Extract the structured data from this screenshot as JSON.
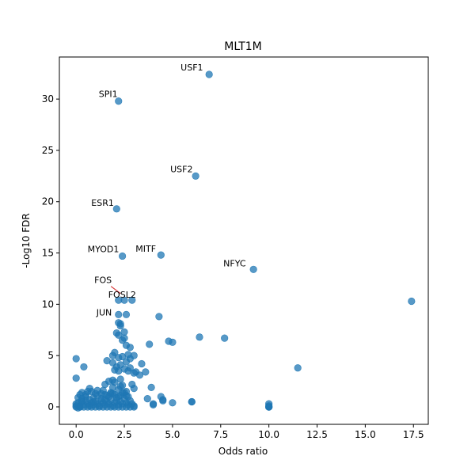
{
  "chart_data": {
    "type": "scatter",
    "title": "MLT1M",
    "xlabel": "Odds ratio",
    "ylabel": "-Log10 FDR",
    "xlim": [
      -0.87,
      18.27
    ],
    "ylim": [
      -1.7,
      34.1
    ],
    "xticks": [
      "0.0",
      "2.5",
      "5.0",
      "7.5",
      "10.0",
      "12.5",
      "15.0",
      "17.5"
    ],
    "yticks": [
      "0",
      "5",
      "10",
      "15",
      "20",
      "25",
      "30"
    ],
    "grid": false,
    "point_color": "#1f77b4",
    "annotations": [
      {
        "label": "USF1",
        "x": 6.9,
        "y": 32.4
      },
      {
        "label": "SPI1",
        "x": 2.2,
        "y": 29.8
      },
      {
        "label": "USF2",
        "x": 6.2,
        "y": 22.5
      },
      {
        "label": "ESR1",
        "x": 2.1,
        "y": 19.3
      },
      {
        "label": "MYOD1",
        "x": 2.4,
        "y": 14.7
      },
      {
        "label": "MITF",
        "x": 4.4,
        "y": 14.8
      },
      {
        "label": "NFYC",
        "x": 9.2,
        "y": 13.4
      },
      {
        "label": "FOS",
        "x": 2.3,
        "y": 10.9
      },
      {
        "label": "FOSL2",
        "x": 2.2,
        "y": 10.5
      },
      {
        "label": "JUN",
        "x": 2.2,
        "y": 10.3
      }
    ],
    "x": [
      6.9,
      2.2,
      6.2,
      2.1,
      2.4,
      4.4,
      9.2,
      2.2,
      2.5,
      2.9,
      17.4,
      2.2,
      2.3,
      2.6,
      4.3,
      2.2,
      2.3,
      2.5,
      2.1,
      2.2,
      2.4,
      6.4,
      7.7,
      4.8,
      5.0,
      3.8,
      2.6,
      2.8,
      2.5,
      1.9,
      2.0,
      2.2,
      2.4,
      2.7,
      2.8,
      3.0,
      3.4,
      1.6,
      1.9,
      2.1,
      2.3,
      2.6,
      2.8,
      3.1,
      3.6,
      2.0,
      2.2,
      2.5,
      2.7,
      3.0,
      3.3,
      11.5,
      0.0,
      0.0,
      0.4,
      1.7,
      1.5,
      1.9,
      2.3,
      2.0,
      2.4,
      2.9,
      3.0,
      3.7,
      3.9,
      4.4,
      4.5,
      5.0,
      6.0,
      4.0,
      0.7,
      0.8,
      0.3,
      0.5,
      1.1,
      1.3,
      10.0,
      10.0,
      10.0,
      10.0,
      10.0,
      10.0,
      0.0,
      0.1,
      0.2,
      0.3,
      0.4,
      0.5,
      0.6,
      0.7,
      0.8,
      0.9,
      1.0,
      1.1,
      1.2,
      1.3,
      1.4,
      1.5,
      1.6,
      1.7,
      1.8,
      1.9,
      2.0,
      2.1,
      2.2,
      2.3,
      2.4,
      2.5,
      2.6,
      2.7,
      2.8,
      2.9,
      3.0,
      0.0,
      0.2,
      0.4,
      0.6,
      0.8,
      1.0,
      1.2,
      1.4,
      1.6,
      1.8,
      2.0,
      2.2,
      2.4,
      2.6,
      2.8,
      3.0,
      0.1,
      0.3,
      0.5,
      0.7,
      0.9,
      1.1,
      1.3,
      1.5,
      1.7,
      1.9,
      2.1,
      2.3,
      2.5,
      2.7,
      0.2,
      0.6,
      1.0,
      1.4,
      1.8,
      2.2,
      2.6,
      0.3,
      0.9,
      1.5,
      1.9,
      2.3,
      1.6,
      1.8,
      2.0,
      2.2,
      2.4,
      2.6,
      4.0,
      4.5,
      6.0,
      0.0,
      0.1,
      0.2
    ],
    "y": [
      32.4,
      29.8,
      22.5,
      19.3,
      14.7,
      14.8,
      13.4,
      10.4,
      10.4,
      10.4,
      10.3,
      9.0,
      8.1,
      9.0,
      8.8,
      8.2,
      7.9,
      7.3,
      7.2,
      7.0,
      6.5,
      6.8,
      6.7,
      6.4,
      6.3,
      6.1,
      6.0,
      5.8,
      6.7,
      5.0,
      5.3,
      4.8,
      4.9,
      5.1,
      4.7,
      5.0,
      4.2,
      4.5,
      4.3,
      3.9,
      4.1,
      4.4,
      3.8,
      3.4,
      3.4,
      3.6,
      3.5,
      3.7,
      3.5,
      3.3,
      3.1,
      3.8,
      4.7,
      2.8,
      3.9,
      2.5,
      2.2,
      2.6,
      2.7,
      2.4,
      2.1,
      2.2,
      1.8,
      0.8,
      1.9,
      1.0,
      0.7,
      0.4,
      0.5,
      0.3,
      1.8,
      1.5,
      1.4,
      1.2,
      1.6,
      1.3,
      0.3,
      0.1,
      0.0,
      0.0,
      0.0,
      0.0,
      0.3,
      0.4,
      0.1,
      0.5,
      0.2,
      0.6,
      0.3,
      0.1,
      0.4,
      0.2,
      0.5,
      0.3,
      0.1,
      0.6,
      0.4,
      0.2,
      0.5,
      0.3,
      0.7,
      0.1,
      0.4,
      0.6,
      0.2,
      0.5,
      0.3,
      0.8,
      0.4,
      0.2,
      0.6,
      0.3,
      0.1,
      0.0,
      0.0,
      0.0,
      0.0,
      0.0,
      0.0,
      0.0,
      0.0,
      0.0,
      0.0,
      0.0,
      0.0,
      0.0,
      0.0,
      0.0,
      0.0,
      0.9,
      0.8,
      1.0,
      0.7,
      0.9,
      1.1,
      0.8,
      1.2,
      1.0,
      1.3,
      0.9,
      1.1,
      1.4,
      1.0,
      1.2,
      1.5,
      1.3,
      1.6,
      1.4,
      1.7,
      1.5,
      0.6,
      0.5,
      0.7,
      1.9,
      2.0,
      1.1,
      1.3,
      1.2,
      1.0,
      1.4,
      1.1,
      0.2,
      0.6,
      0.5,
      0.1,
      -0.1,
      0.0
    ]
  }
}
